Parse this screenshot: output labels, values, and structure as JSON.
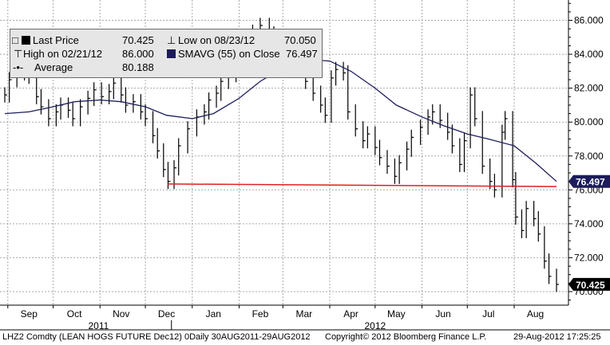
{
  "chart_data": {
    "type": "line",
    "title": "",
    "y_axis": {
      "position": "right",
      "range": [
        69.2,
        87.2
      ],
      "ticks": [
        "70.000",
        "72.000",
        "74.000",
        "76.000",
        "78.000",
        "80.000",
        "82.000",
        "84.000",
        "86.000"
      ],
      "tick_values": [
        70,
        72,
        74,
        76,
        78,
        80,
        82,
        84,
        86
      ]
    },
    "x_axis": {
      "range": [
        "2011-08-30",
        "2012-08-29"
      ],
      "month_labels": [
        "Sep",
        "Oct",
        "Nov",
        "Dec",
        "Jan",
        "Feb",
        "Mar",
        "Apr",
        "May",
        "Jun",
        "Jul",
        "Aug"
      ],
      "month_label_dates": [
        "2011-09-15",
        "2011-10-15",
        "2011-11-15",
        "2011-12-15",
        "2012-01-15",
        "2012-02-15",
        "2012-03-15",
        "2012-04-15",
        "2012-05-15",
        "2012-06-15",
        "2012-07-15",
        "2012-08-15"
      ],
      "year_labels": [
        "2011",
        "2012"
      ],
      "year_label_dates": [
        "2011-10-31",
        "2012-05-01"
      ]
    },
    "grid": true,
    "legend_placement": "top-left",
    "series": [
      {
        "name": "Last Price",
        "color": "#000000",
        "style": "bars",
        "points": [
          [
            "2011-08-30",
            81.6
          ],
          [
            "2011-09-02",
            82.5
          ],
          [
            "2011-09-07",
            82.9
          ],
          [
            "2011-09-12",
            83.0
          ],
          [
            "2011-09-15",
            82.7
          ],
          [
            "2011-09-20",
            81.5
          ],
          [
            "2011-09-23",
            80.9
          ],
          [
            "2011-09-28",
            80.2
          ],
          [
            "2011-10-03",
            80.6
          ],
          [
            "2011-10-06",
            81.0
          ],
          [
            "2011-10-11",
            80.7
          ],
          [
            "2011-10-14",
            80.2
          ],
          [
            "2011-10-19",
            80.9
          ],
          [
            "2011-10-24",
            81.4
          ],
          [
            "2011-10-28",
            81.9
          ],
          [
            "2011-11-02",
            81.5
          ],
          [
            "2011-11-07",
            81.8
          ],
          [
            "2011-11-10",
            82.3
          ],
          [
            "2011-11-15",
            81.6
          ],
          [
            "2011-11-18",
            81.0
          ],
          [
            "2011-11-23",
            81.2
          ],
          [
            "2011-11-28",
            80.6
          ],
          [
            "2011-12-01",
            80.2
          ],
          [
            "2011-12-06",
            79.2
          ],
          [
            "2011-12-09",
            78.3
          ],
          [
            "2011-12-13",
            77.2
          ],
          [
            "2011-12-16",
            76.5
          ],
          [
            "2011-12-20",
            77.3
          ],
          [
            "2011-12-23",
            78.6
          ],
          [
            "2011-12-29",
            79.6
          ],
          [
            "2012-01-04",
            80.3
          ],
          [
            "2012-01-09",
            80.6
          ],
          [
            "2012-01-12",
            81.3
          ],
          [
            "2012-01-17",
            81.7
          ],
          [
            "2012-01-20",
            82.4
          ],
          [
            "2012-01-25",
            82.8
          ],
          [
            "2012-01-30",
            83.3
          ],
          [
            "2012-02-02",
            84.0
          ],
          [
            "2012-02-07",
            84.8
          ],
          [
            "2012-02-10",
            85.3
          ],
          [
            "2012-02-15",
            85.7
          ],
          [
            "2012-02-21",
            85.2
          ],
          [
            "2012-02-24",
            84.7
          ],
          [
            "2012-02-29",
            85.0
          ],
          [
            "2012-03-05",
            84.3
          ],
          [
            "2012-03-08",
            83.8
          ],
          [
            "2012-03-13",
            83.1
          ],
          [
            "2012-03-16",
            82.4
          ],
          [
            "2012-03-21",
            81.7
          ],
          [
            "2012-03-26",
            81.0
          ],
          [
            "2012-03-29",
            80.4
          ],
          [
            "2012-04-02",
            82.6
          ],
          [
            "2012-04-05",
            83.1
          ],
          [
            "2012-04-10",
            82.9
          ],
          [
            "2012-04-13",
            80.6
          ],
          [
            "2012-04-18",
            79.6
          ],
          [
            "2012-04-23",
            78.9
          ],
          [
            "2012-04-26",
            79.3
          ],
          [
            "2012-05-01",
            78.5
          ],
          [
            "2012-05-04",
            77.9
          ],
          [
            "2012-05-09",
            77.4
          ],
          [
            "2012-05-14",
            76.8
          ],
          [
            "2012-05-17",
            77.6
          ],
          [
            "2012-05-22",
            78.4
          ],
          [
            "2012-05-25",
            79.1
          ],
          [
            "2012-05-31",
            79.7
          ],
          [
            "2012-06-05",
            80.3
          ],
          [
            "2012-06-08",
            80.6
          ],
          [
            "2012-06-13",
            80.1
          ],
          [
            "2012-06-18",
            79.4
          ],
          [
            "2012-06-21",
            78.6
          ],
          [
            "2012-06-26",
            77.5
          ],
          [
            "2012-06-29",
            78.9
          ],
          [
            "2012-07-03",
            81.6
          ],
          [
            "2012-07-06",
            80.2
          ],
          [
            "2012-07-11",
            77.4
          ],
          [
            "2012-07-16",
            76.5
          ],
          [
            "2012-07-19",
            76.0
          ],
          [
            "2012-07-24",
            79.4
          ],
          [
            "2012-07-26",
            80.2
          ],
          [
            "2012-07-31",
            76.6
          ],
          [
            "2012-08-02",
            74.4
          ],
          [
            "2012-08-06",
            73.6
          ],
          [
            "2012-08-09",
            74.9
          ],
          [
            "2012-08-14",
            74.3
          ],
          [
            "2012-08-17",
            73.4
          ],
          [
            "2012-08-21",
            71.8
          ],
          [
            "2012-08-24",
            70.9
          ],
          [
            "2012-08-29",
            70.425
          ]
        ]
      },
      {
        "name": "SMAVG (55) on Close",
        "color": "#1c1c5c",
        "style": "line",
        "points": [
          [
            "2011-08-30",
            80.5
          ],
          [
            "2011-09-15",
            80.6
          ],
          [
            "2011-10-01",
            80.9
          ],
          [
            "2011-10-15",
            81.2
          ],
          [
            "2011-11-01",
            81.3
          ],
          [
            "2011-11-15",
            81.2
          ],
          [
            "2011-12-01",
            80.9
          ],
          [
            "2011-12-15",
            80.4
          ],
          [
            "2012-01-01",
            80.2
          ],
          [
            "2012-01-15",
            80.5
          ],
          [
            "2012-02-01",
            81.4
          ],
          [
            "2012-02-15",
            82.4
          ],
          [
            "2012-03-01",
            83.2
          ],
          [
            "2012-03-15",
            83.7
          ],
          [
            "2012-04-01",
            83.6
          ],
          [
            "2012-04-15",
            83.0
          ],
          [
            "2012-05-01",
            82.0
          ],
          [
            "2012-05-15",
            81.0
          ],
          [
            "2012-06-01",
            80.3
          ],
          [
            "2012-06-15",
            79.8
          ],
          [
            "2012-07-01",
            79.3
          ],
          [
            "2012-07-15",
            79.0
          ],
          [
            "2012-08-01",
            78.6
          ],
          [
            "2012-08-15",
            77.6
          ],
          [
            "2012-08-29",
            76.497
          ]
        ]
      },
      {
        "name": "Support line",
        "color": "#e02020",
        "style": "line",
        "points": [
          [
            "2011-12-16",
            76.35
          ],
          [
            "2012-08-29",
            76.2
          ]
        ]
      }
    ],
    "last_value_labels": [
      {
        "label": "76.497",
        "value": 76.497,
        "background": "#1c1c5c",
        "color": "#ffffff"
      },
      {
        "label": "70.425",
        "value": 70.425,
        "background": "#000000",
        "color": "#ffffff"
      }
    ]
  },
  "legend": {
    "rows": [
      {
        "label": "Last Price",
        "value": "70.425",
        "low_label": "Low on 08/23/12",
        "low_value": "70.050"
      },
      {
        "label": "High on 02/21/12",
        "value": "86.000",
        "avg_label": "SMAVG (55) on Close",
        "avg_value": "76.497"
      },
      {
        "label": "Average",
        "value": "80.188"
      }
    ],
    "colors": {
      "last_price": "#000000",
      "smavg": "#1c1c5c"
    },
    "icons": [
      "black-square-icon",
      "high-tick-icon",
      "low-tick-icon",
      "navy-square-icon",
      "average-marker-icon"
    ]
  },
  "footer": {
    "left": "LHZ2 Comdty (LEAN HOGS FUTURE  Dec12) 0Daily 30AUG2011-29AUG2012",
    "copyright": "Copyright© 2012 Bloomberg Finance L.P.",
    "timestamp": "29-Aug-2012 17:25:25"
  }
}
